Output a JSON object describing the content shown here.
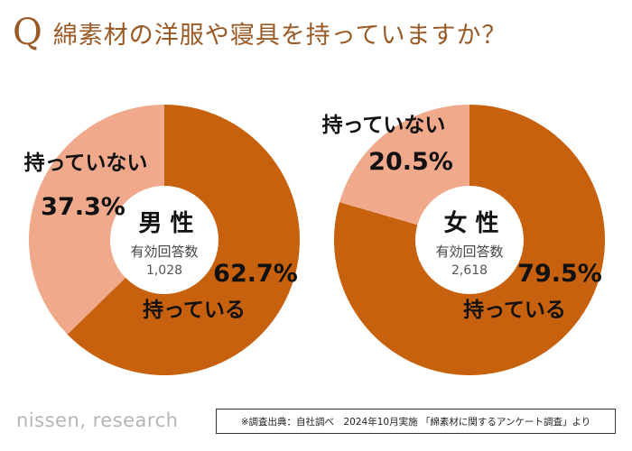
{
  "title": {
    "q_mark": "Q",
    "question": "綿素材の洋服や寝具を持っていますか？"
  },
  "colors": {
    "title": "#9a5a25",
    "own": "#c7610d",
    "not_own": "#f0a98a",
    "center": "#ffffff"
  },
  "chart_data": [
    {
      "type": "pie",
      "variant": "donut",
      "group": "男 性",
      "respondents_label": "有効回答数",
      "respondents": "1,028",
      "slices": [
        {
          "label": "持っている",
          "value": 62.7,
          "value_label": "62.7%"
        },
        {
          "label": "持っていない",
          "value": 37.3,
          "value_label": "37.3%"
        }
      ]
    },
    {
      "type": "pie",
      "variant": "donut",
      "group": "女 性",
      "respondents_label": "有効回答数",
      "respondents": "2,618",
      "slices": [
        {
          "label": "持っている",
          "value": 79.5,
          "value_label": "79.5%"
        },
        {
          "label": "持っていない",
          "value": 20.5,
          "value_label": "20.5%"
        }
      ]
    }
  ],
  "footer": {
    "logo": "nissen, research",
    "source": "※調査出典：自社調べ　2024年10月実施 「綿素材に関するアンケート調査」より"
  }
}
